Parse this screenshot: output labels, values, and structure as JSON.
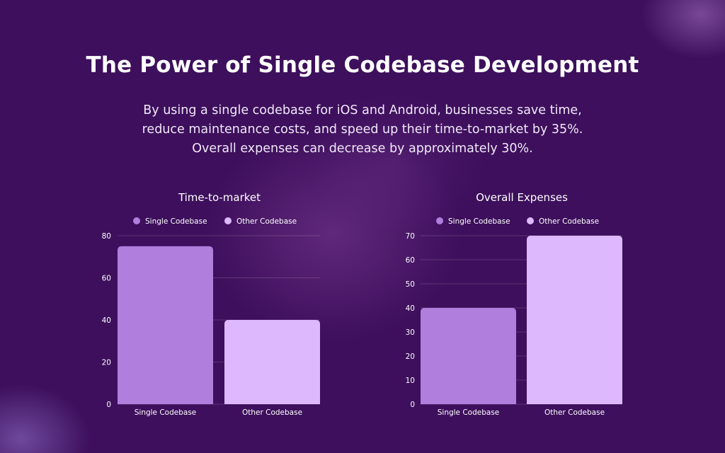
{
  "header": {
    "title": "The Power of Single Codebase Development",
    "subtitle_lines": [
      "By using a single codebase for iOS and Android, businesses save time,",
      "reduce maintenance costs, and speed up their time-to-market by 35%.",
      "Overall expenses can decrease by approximately 30%."
    ]
  },
  "colors": {
    "background": "#3d0f5c",
    "single": "#b07fdd",
    "other": "#ddb8fd"
  },
  "chart_data": [
    {
      "type": "bar",
      "title": "Time-to-market",
      "categories": [
        "Single Codebase",
        "Other Codebase"
      ],
      "values": [
        75,
        40
      ],
      "legend": [
        "Single Codebase",
        "Other Codebase"
      ],
      "yticks": [
        "0",
        "20",
        "40",
        "60",
        "80"
      ],
      "ylim": [
        0,
        80
      ],
      "grid": true,
      "legend_position": "top"
    },
    {
      "type": "bar",
      "title": "Overall Expenses",
      "categories": [
        "Single Codebase",
        "Other Codebase"
      ],
      "values": [
        40,
        70
      ],
      "legend": [
        "Single Codebase",
        "Other Codebase"
      ],
      "yticks": [
        "0",
        "10",
        "20",
        "30",
        "40",
        "50",
        "60",
        "70"
      ],
      "ylim": [
        0,
        70
      ],
      "grid": true,
      "legend_position": "top"
    }
  ]
}
